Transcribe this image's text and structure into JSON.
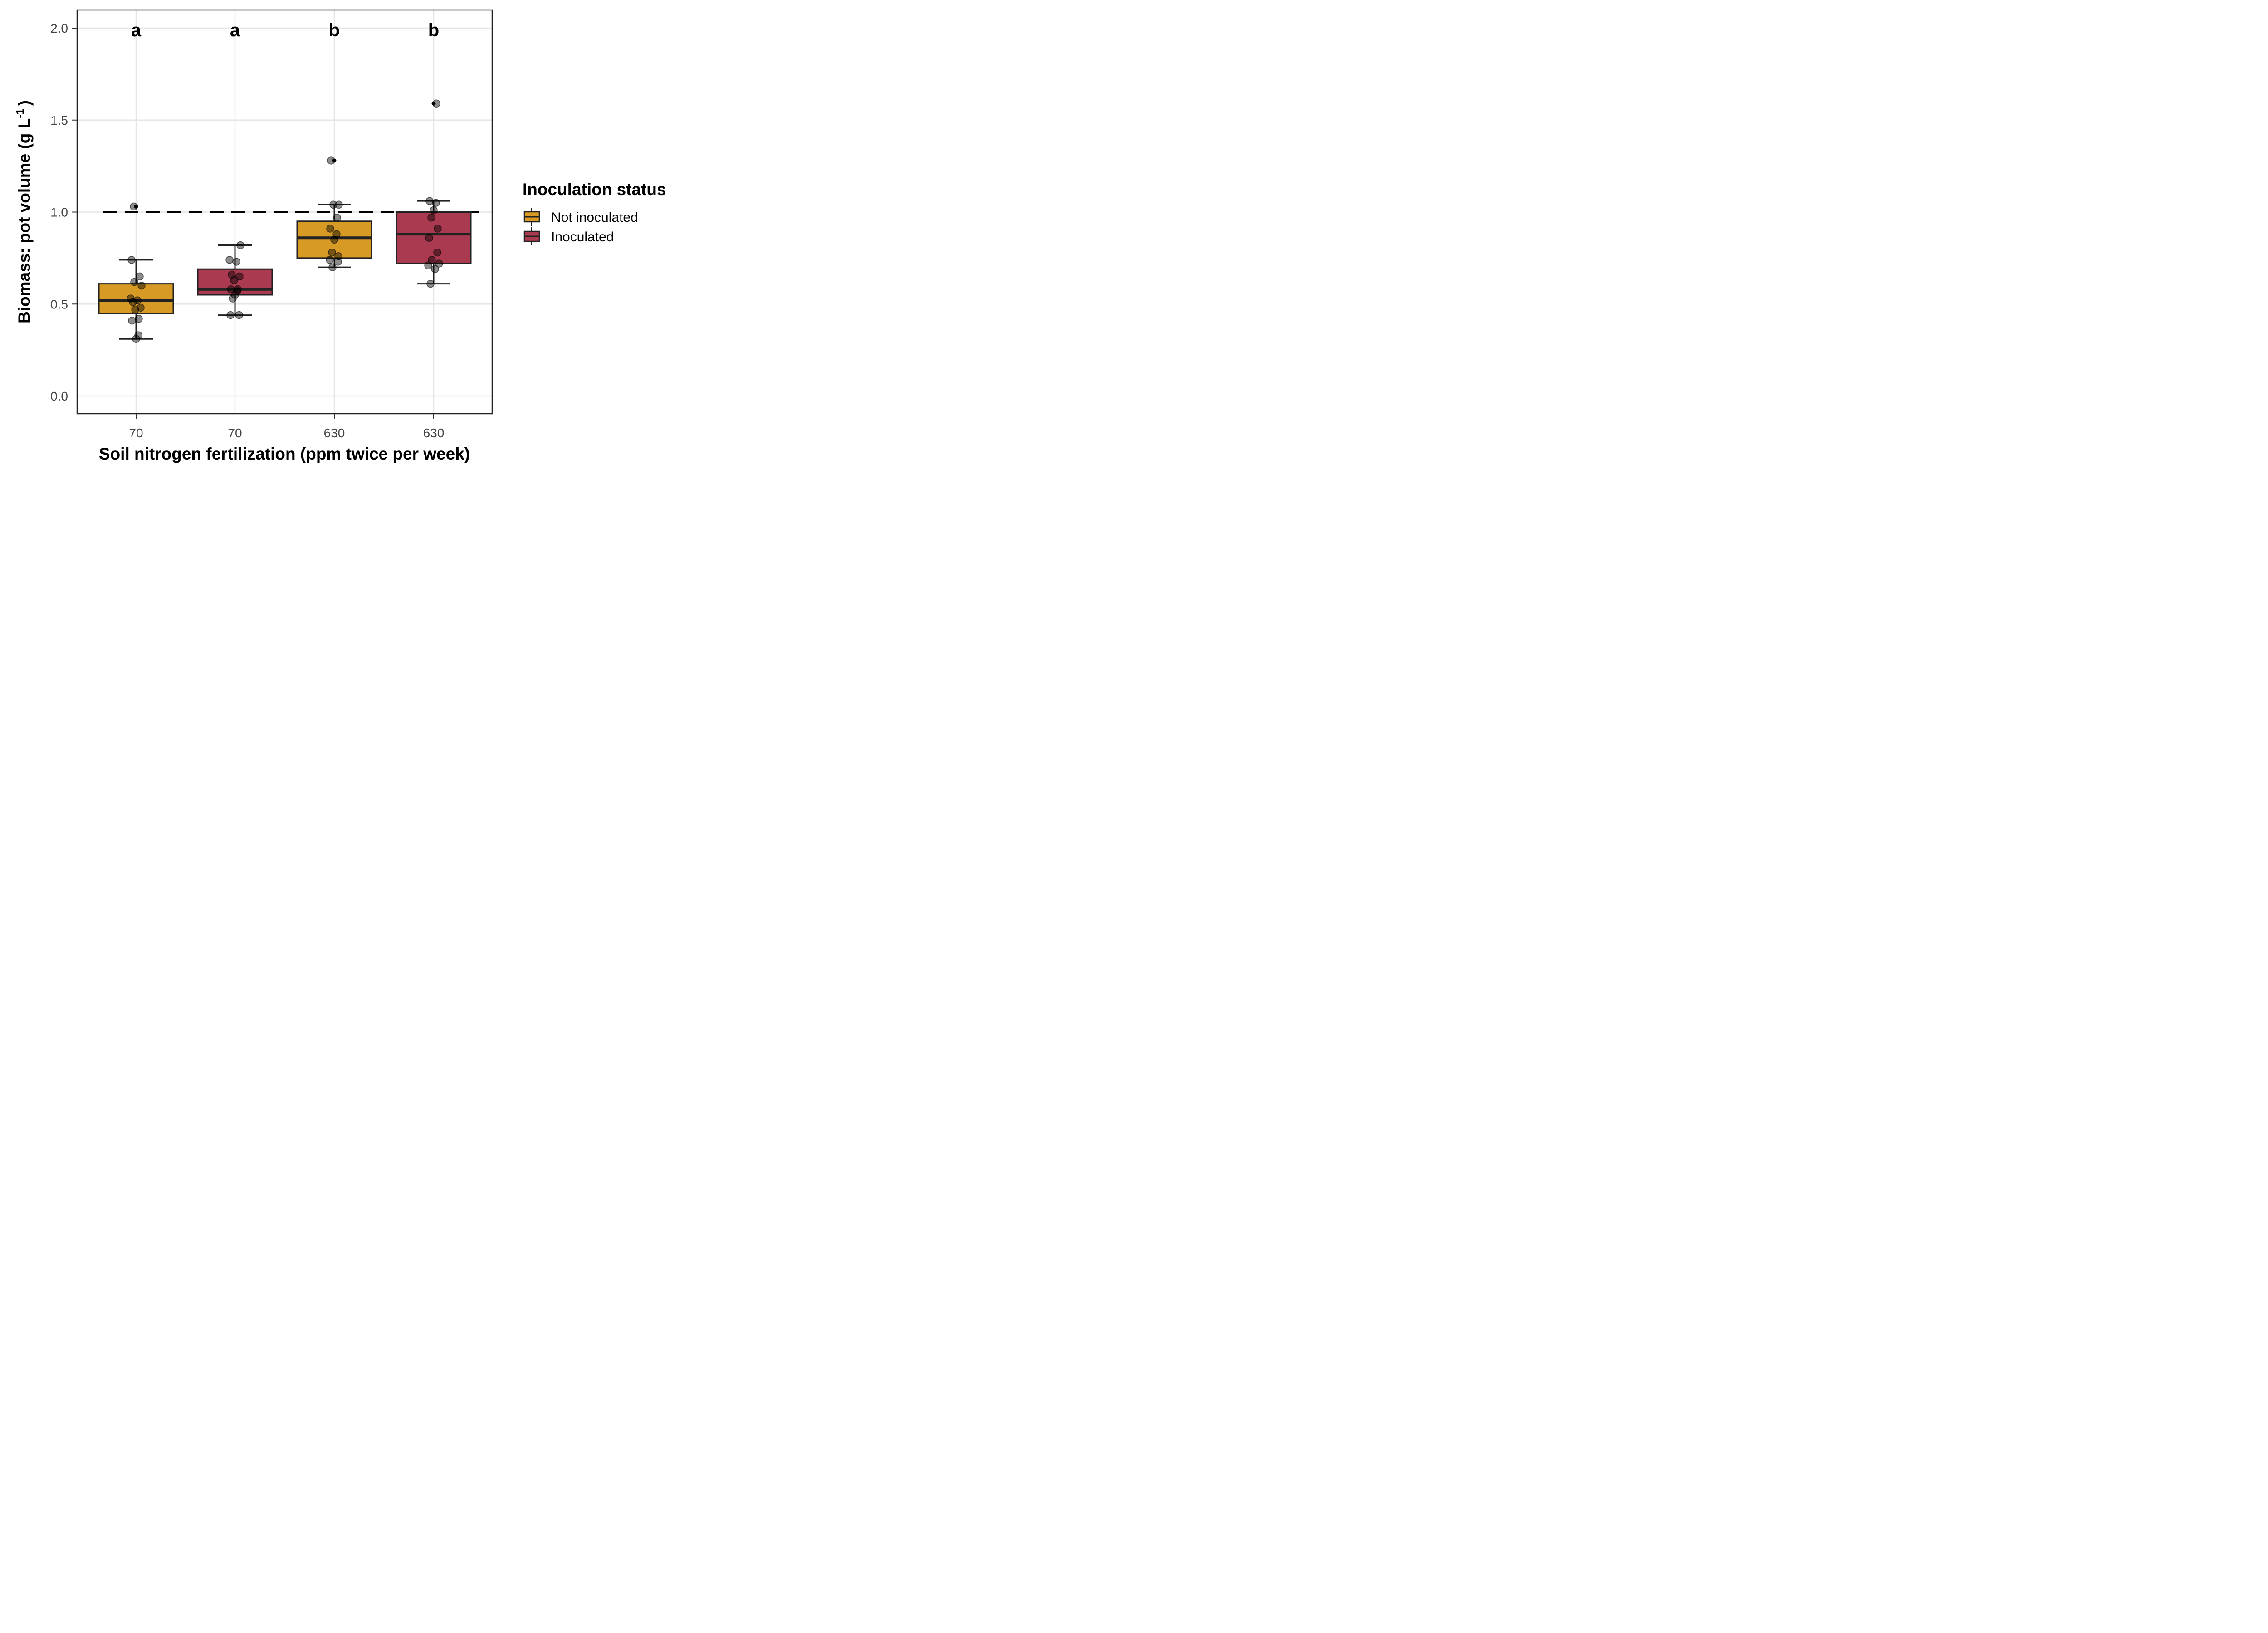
{
  "chart_data": {
    "type": "box",
    "xlabel": "Soil nitrogen fertilization (ppm twice per week)",
    "ylabel": "Biomass: pot volume (g L",
    "ylabel_superscript": "-1",
    "ylabel_suffix": ")",
    "ylim": [
      -0.09,
      2.1
    ],
    "yticks": [
      0.0,
      0.5,
      1.0,
      1.5,
      2.0
    ],
    "ytick_labels": [
      "0.0",
      "0.5",
      "1.0",
      "1.5",
      "2.0"
    ],
    "grid": true,
    "reference_line": {
      "y": 1.0,
      "style": "dashed"
    },
    "legend": {
      "title": "Inoculation status",
      "placement": "right",
      "entries": [
        {
          "name": "Not inoculated",
          "color": "#D79B25"
        },
        {
          "name": "Inoculated",
          "color": "#AA3A50"
        }
      ]
    },
    "groups": [
      {
        "label": "70",
        "series": "Not inoculated",
        "color": "#D79B25",
        "letter": "a",
        "box": {
          "whisker_low": 0.31,
          "q1": 0.45,
          "median": 0.52,
          "q3": 0.61,
          "whisker_high": 0.74
        },
        "outliers": [
          1.03
        ],
        "points": [
          0.74,
          0.65,
          0.62,
          0.6,
          0.53,
          0.52,
          0.51,
          0.48,
          0.47,
          0.42,
          0.41,
          0.33,
          0.31,
          1.03
        ]
      },
      {
        "label": "70",
        "series": "Inoculated",
        "color": "#AA3A50",
        "letter": "a",
        "box": {
          "whisker_low": 0.44,
          "q1": 0.55,
          "median": 0.58,
          "q3": 0.69,
          "whisker_high": 0.82
        },
        "outliers": [],
        "points": [
          0.82,
          0.74,
          0.73,
          0.66,
          0.65,
          0.63,
          0.58,
          0.58,
          0.57,
          0.55,
          0.53,
          0.44,
          0.44
        ]
      },
      {
        "label": "630",
        "series": "Not inoculated",
        "color": "#D79B25",
        "letter": "b",
        "box": {
          "whisker_low": 0.7,
          "q1": 0.75,
          "median": 0.86,
          "q3": 0.95,
          "whisker_high": 1.04
        },
        "outliers": [
          1.28
        ],
        "points": [
          1.28,
          1.04,
          1.04,
          0.97,
          0.91,
          0.88,
          0.85,
          0.78,
          0.76,
          0.74,
          0.73,
          0.7
        ]
      },
      {
        "label": "630",
        "series": "Inoculated",
        "color": "#AA3A50",
        "letter": "b",
        "box": {
          "whisker_low": 0.61,
          "q1": 0.72,
          "median": 0.88,
          "q3": 1.0,
          "whisker_high": 1.06
        },
        "outliers": [
          1.59
        ],
        "points": [
          1.59,
          1.06,
          1.05,
          1.01,
          0.97,
          0.91,
          0.86,
          0.78,
          0.74,
          0.72,
          0.71,
          0.69,
          0.61
        ]
      }
    ]
  }
}
